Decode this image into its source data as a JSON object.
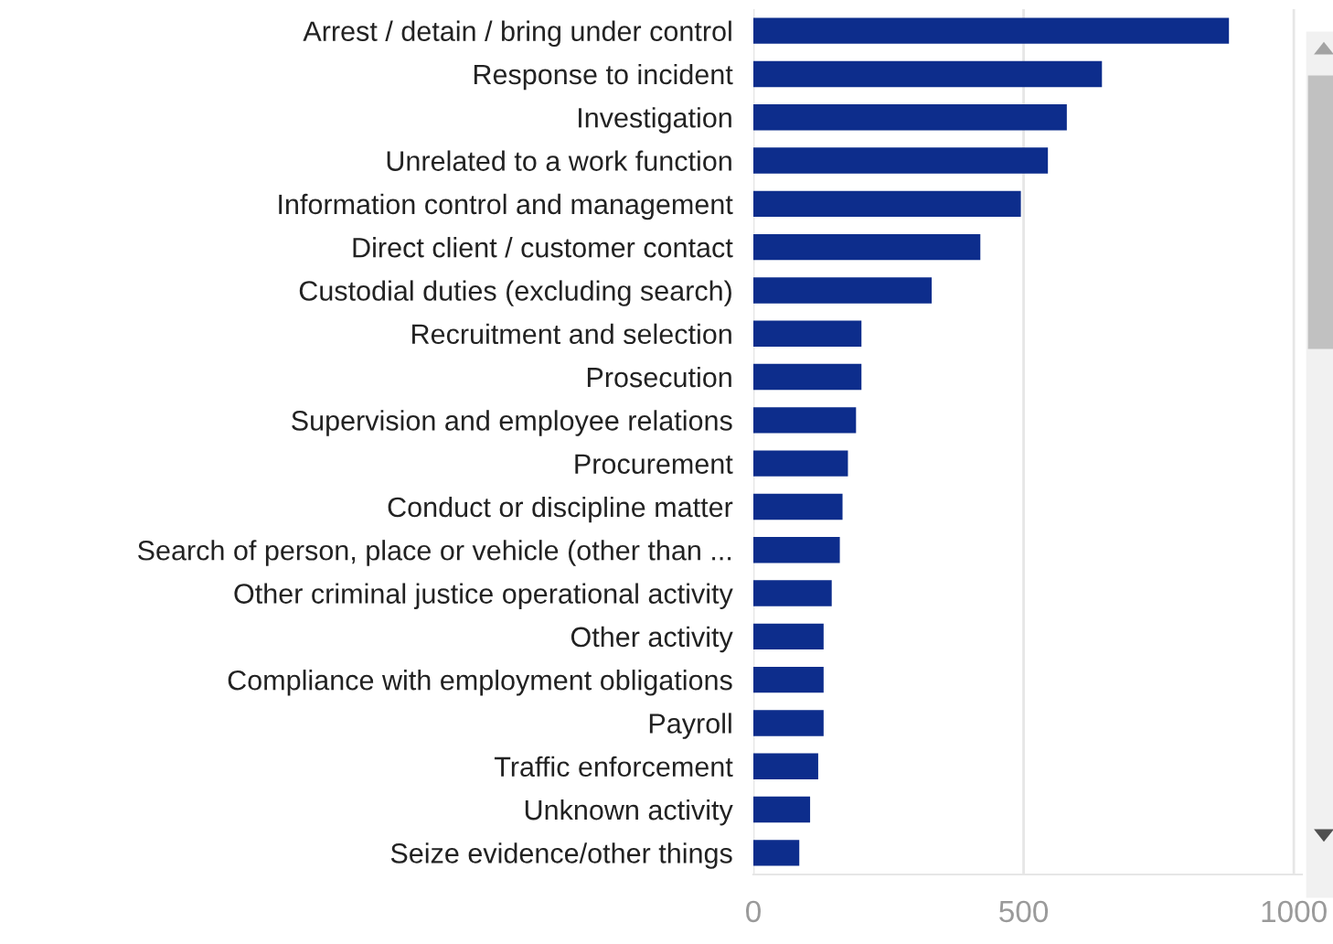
{
  "chart_data": {
    "type": "bar",
    "orientation": "horizontal",
    "categories": [
      "Arrest / detain / bring under control",
      "Response to incident",
      "Investigation",
      "Unrelated to a work function",
      "Information control and management",
      "Direct client / customer contact",
      "Custodial duties (excluding search)",
      "Recruitment and selection",
      "Prosecution",
      "Supervision and employee relations",
      "Procurement",
      "Conduct or discipline matter",
      "Search of person, place or vehicle (other than ...",
      "Other criminal justice operational activity",
      "Other activity",
      "Compliance with employment obligations",
      "Payroll",
      "Traffic enforcement",
      "Unknown activity",
      "Seize evidence/other things"
    ],
    "values": [
      880,
      645,
      580,
      545,
      495,
      420,
      330,
      200,
      200,
      190,
      175,
      165,
      160,
      145,
      130,
      130,
      130,
      120,
      105,
      85
    ],
    "color": "#0d2d8c",
    "xlim": [
      0,
      1015
    ],
    "xticks": [
      0,
      500,
      1000
    ],
    "grid": "x",
    "legend": false
  }
}
